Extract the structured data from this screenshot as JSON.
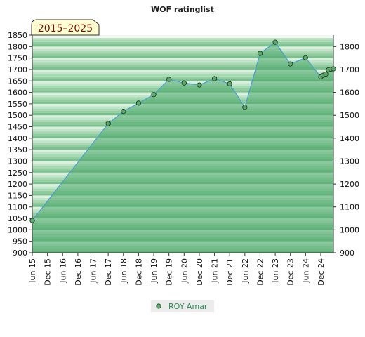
{
  "chart_data": {
    "type": "area",
    "title": "WOF ratinglist",
    "period_label": "2015–2025",
    "series": [
      {
        "name": "ROY Amar",
        "color": "#2e8b57",
        "points": [
          {
            "x": "2015-06",
            "y": 1041
          },
          {
            "x": "2017-12",
            "y": 1464
          },
          {
            "x": "2018-06",
            "y": 1517
          },
          {
            "x": "2018-12",
            "y": 1553
          },
          {
            "x": "2019-06",
            "y": 1590
          },
          {
            "x": "2019-12",
            "y": 1657
          },
          {
            "x": "2020-06",
            "y": 1641
          },
          {
            "x": "2020-12",
            "y": 1632
          },
          {
            "x": "2021-06",
            "y": 1660
          },
          {
            "x": "2021-12",
            "y": 1637
          },
          {
            "x": "2022-06",
            "y": 1535
          },
          {
            "x": "2022-12",
            "y": 1770
          },
          {
            "x": "2023-06",
            "y": 1819
          },
          {
            "x": "2023-12",
            "y": 1724
          },
          {
            "x": "2024-06",
            "y": 1751
          },
          {
            "x": "2024-12",
            "y": 1668
          },
          {
            "x": "2025-01",
            "y": 1675
          },
          {
            "x": "2025-02",
            "y": 1680
          },
          {
            "x": "2025-03",
            "y": 1698
          },
          {
            "x": "2025-04",
            "y": 1701
          },
          {
            "x": "2025-05",
            "y": 1703
          }
        ]
      }
    ],
    "x_tick_labels": [
      "Jun 15",
      "Dec 15",
      "Jun 16",
      "Dec 16",
      "Jun 17",
      "Dec 17",
      "Jun 18",
      "Dec 18",
      "Jun 19",
      "Dec 19",
      "Jun 20",
      "Dec 20",
      "Jun 21",
      "Dec 21",
      "Jun 22",
      "Dec 22",
      "Jun 23",
      "Dec 23",
      "Jun 24",
      "Dec 24"
    ],
    "y_left_ticks": [
      900,
      950,
      1000,
      1050,
      1100,
      1150,
      1200,
      1250,
      1300,
      1350,
      1400,
      1450,
      1500,
      1550,
      1600,
      1650,
      1700,
      1750,
      1800,
      1850
    ],
    "y_right_ticks": [
      900,
      1000,
      1100,
      1200,
      1300,
      1400,
      1500,
      1600,
      1700,
      1800
    ],
    "xlim": [
      "2015-06",
      "2025-05"
    ],
    "ylim": [
      900,
      1850
    ],
    "legend_position": "bottom-center"
  }
}
